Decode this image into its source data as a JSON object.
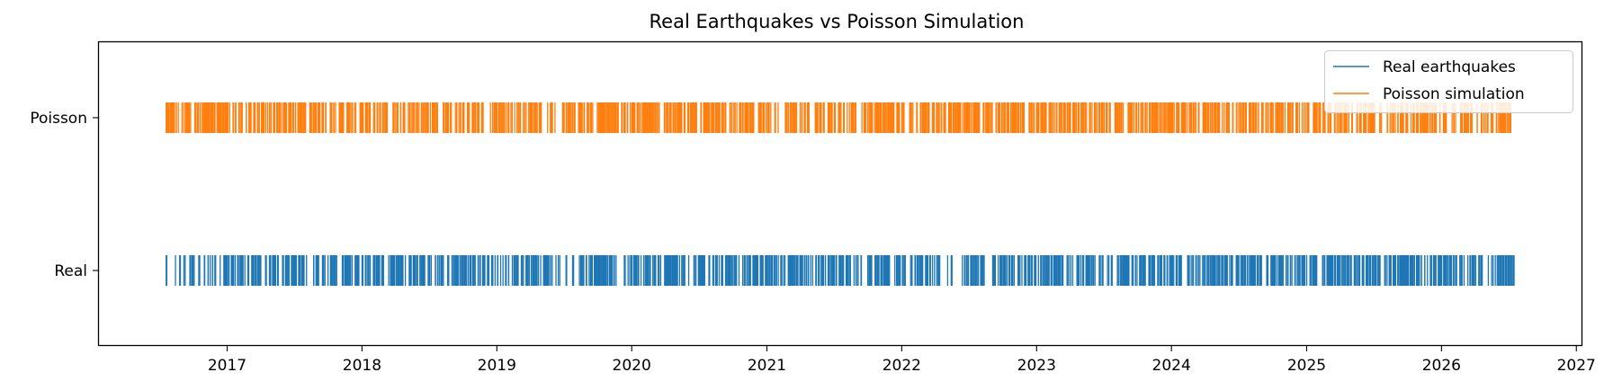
{
  "chart_data": {
    "type": "eventplot",
    "title": "Real Earthquakes vs Poisson Simulation",
    "xlabel": "",
    "ylabel": "",
    "x_scale": "date",
    "xlim": [
      "2016-01-20",
      "2027-01-15"
    ],
    "x_ticks": [
      "2017",
      "2018",
      "2019",
      "2020",
      "2021",
      "2022",
      "2023",
      "2024",
      "2025",
      "2026",
      "2027"
    ],
    "y_categories": [
      "Real",
      "Poisson"
    ],
    "event_range": [
      "2016-07-20",
      "2026-07-20"
    ],
    "grid": false,
    "legend_position": "upper right",
    "series": [
      {
        "name": "Real earthquakes",
        "category": "Real",
        "color": "#1f77b4",
        "event_count_approx": 1450,
        "gaps": [
          [
            "2016-07-24",
            "2016-08-12"
          ],
          [
            "2016-09-10",
            "2016-09-22"
          ],
          [
            "2017-02-18",
            "2017-02-26"
          ],
          [
            "2017-04-05",
            "2017-04-14"
          ],
          [
            "2017-05-20",
            "2017-05-28"
          ],
          [
            "2017-08-10",
            "2017-08-22"
          ],
          [
            "2018-01-04",
            "2018-01-10"
          ],
          [
            "2018-07-08",
            "2018-07-14"
          ],
          [
            "2018-12-02",
            "2018-12-06"
          ],
          [
            "2019-06-03",
            "2019-06-09"
          ],
          [
            "2019-11-20",
            "2019-12-06"
          ],
          [
            "2020-05-10",
            "2020-05-14"
          ],
          [
            "2022-04-20",
            "2022-05-02"
          ],
          [
            "2022-05-22",
            "2022-06-10"
          ],
          [
            "2022-08-18",
            "2022-09-03"
          ],
          [
            "2023-04-12",
            "2023-04-16"
          ],
          [
            "2023-09-12",
            "2023-09-16"
          ],
          [
            "2025-01-03",
            "2025-01-10"
          ],
          [
            "2025-07-20",
            "2025-07-26"
          ]
        ]
      },
      {
        "name": "Poisson simulation",
        "category": "Poisson",
        "color": "#ff7f0e",
        "event_count_approx": 1450,
        "gaps": [
          [
            "2018-11-25",
            "2018-12-06"
          ],
          [
            "2021-09-10",
            "2021-09-15"
          ],
          [
            "2022-02-12",
            "2022-02-16"
          ],
          [
            "2023-07-20",
            "2023-07-25"
          ],
          [
            "2025-01-10",
            "2025-01-18"
          ]
        ]
      }
    ]
  }
}
